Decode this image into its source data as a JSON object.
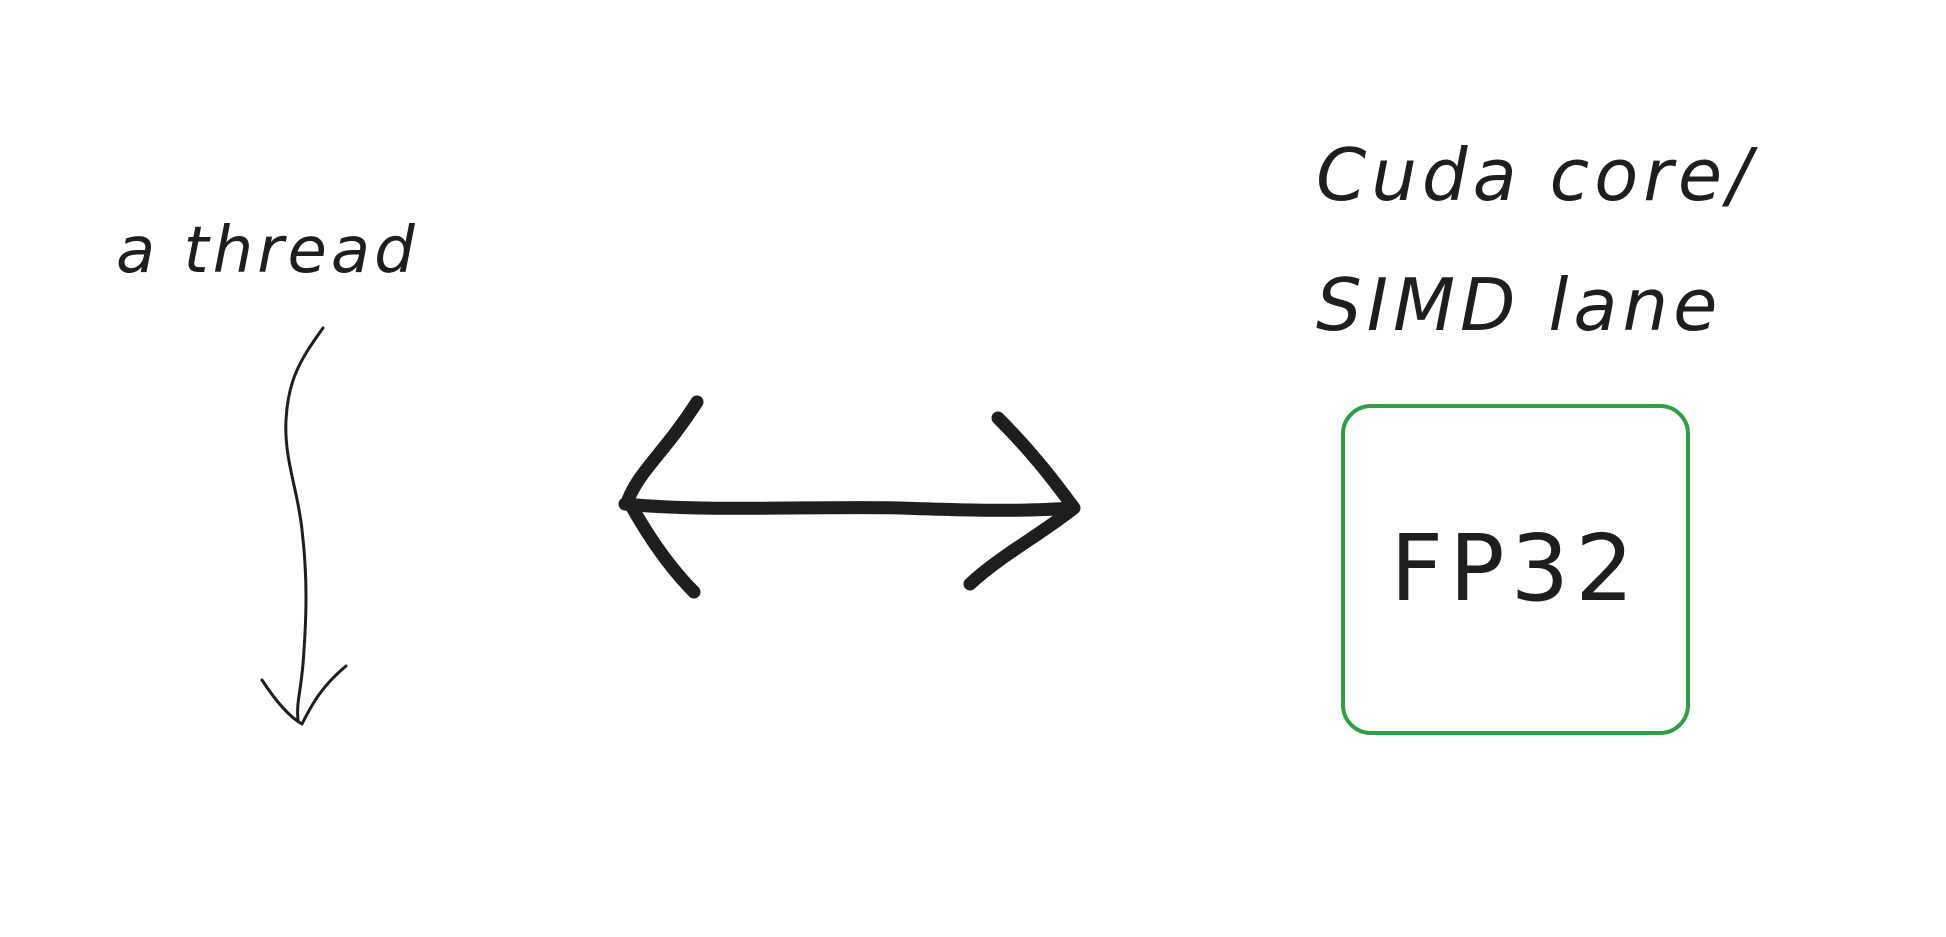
{
  "diagram": {
    "thread_label": "a thread",
    "core_label_line1": "Cuda core/",
    "core_label_line2": "SIMD lane",
    "box_label": "FP32",
    "colors": {
      "stroke": "#1e1e1e",
      "box_border": "#2f9e44",
      "background": "#ffffff"
    }
  }
}
